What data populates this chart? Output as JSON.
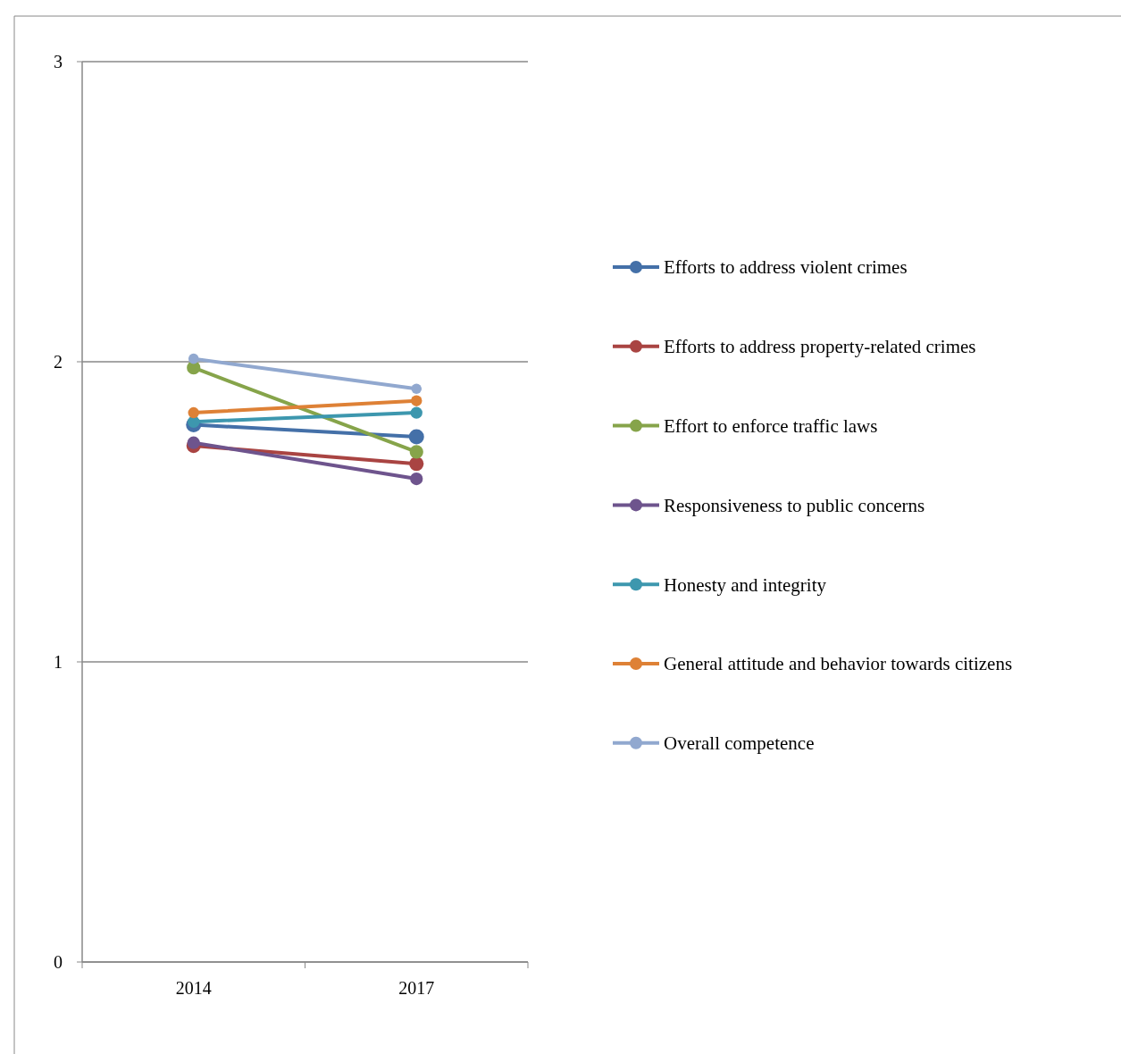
{
  "chart_data": {
    "type": "line",
    "categories": [
      "2014",
      "2017"
    ],
    "series": [
      {
        "name": "Efforts to address violent crimes",
        "color": "#4470a8",
        "values": [
          1.79,
          1.75
        ]
      },
      {
        "name": "Efforts to address property-related crimes",
        "color": "#a94442",
        "values": [
          1.72,
          1.66
        ]
      },
      {
        "name": "Effort to enforce traffic laws",
        "color": "#86a44a",
        "values": [
          1.98,
          1.7
        ]
      },
      {
        "name": "Responsiveness to public concerns",
        "color": "#6e548d",
        "values": [
          1.73,
          1.61
        ]
      },
      {
        "name": "Honesty and integrity",
        "color": "#3d97ae",
        "values": [
          1.8,
          1.83
        ]
      },
      {
        "name": "General attitude and behavior towards citizens",
        "color": "#de8136",
        "values": [
          1.83,
          1.87
        ]
      },
      {
        "name": "Overall competence",
        "color": "#91a8cf",
        "values": [
          2.01,
          1.91
        ]
      }
    ],
    "ylim": [
      0,
      3
    ],
    "yticks": [
      0,
      1,
      2,
      3
    ],
    "grid": "y",
    "legend": "right",
    "marker": "circle",
    "line_style": "solid"
  }
}
